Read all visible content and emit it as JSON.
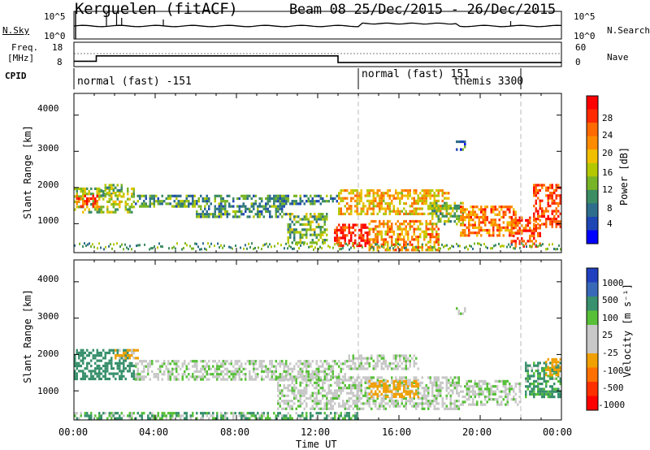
{
  "header": {
    "title": "Kerguelen (fitACF)",
    "beam_range": "Beam 08  25/Dec/2015 - 26/Dec/2015"
  },
  "top_panels": {
    "nsky": {
      "left_label": "N.Sky",
      "right_label": "N.Search",
      "left_ticks": [
        "10^5",
        "10^0"
      ],
      "right_ticks": [
        "10^5",
        "10^0"
      ]
    },
    "freq": {
      "left_label_line1": "Freq.",
      "left_label_line2": "[MHz]",
      "right_label": "Nave",
      "left_ticks": [
        "18",
        "8"
      ],
      "right_ticks": [
        "60",
        "0"
      ]
    },
    "cpid": {
      "label": "CPID",
      "modes": [
        {
          "text": "normal (fast) -151",
          "start_hour": 0,
          "end_hour": 14
        },
        {
          "text": "normal (fast) 151",
          "start_hour": 14,
          "end_hour": 22
        },
        {
          "text": "themis 3300",
          "start_hour": 19.5,
          "end_hour": 22
        }
      ],
      "boundaries_hours": [
        14,
        22
      ]
    }
  },
  "power_panel": {
    "ylabel": "Slant Range [km]",
    "yticks": [
      "4000",
      "3000",
      "2000",
      "1000"
    ],
    "colorbar_label": "Power [dB]",
    "colorbar_ticks": [
      "28",
      "24",
      "20",
      "16",
      "12",
      "8",
      "4"
    ],
    "colors": [
      "#ff0000",
      "#ff2a00",
      "#ff6a00",
      "#ff8c00",
      "#f0c000",
      "#b4c800",
      "#78b428",
      "#3c8c64",
      "#2e6e8c",
      "#1e46b4",
      "#0000ff"
    ]
  },
  "velocity_panel": {
    "ylabel": "Slant Range [km]",
    "yticks": [
      "4000",
      "3000",
      "2000",
      "1000"
    ],
    "colorbar_label": "Velocity [m s⁻¹]",
    "colorbar_ticks": [
      "1000",
      "500",
      "100",
      "25",
      "-25",
      "-100",
      "-500",
      "-1000"
    ],
    "colors": [
      "#2040c0",
      "#3868b8",
      "#38906c",
      "#58c038",
      "#c8c8c8",
      "#c8c8c8",
      "#f0a000",
      "#ff7000",
      "#ff3000",
      "#ff0000"
    ]
  },
  "xaxis": {
    "ticks": [
      "00:00",
      "04:00",
      "08:00",
      "12:00",
      "16:00",
      "20:00",
      "00:00"
    ],
    "label": "Time UT"
  },
  "chart_data": {
    "type": "heatmap",
    "title": "Kerguelen (fitACF) Beam 08 25/Dec/2015 - 26/Dec/2015",
    "xlabel": "Time UT",
    "ylabel": "Slant Range [km]",
    "xlim_hours": [
      0,
      24
    ],
    "ylim_km": [
      200,
      4600
    ],
    "freq_mhz_segments": [
      {
        "start_hour": 0,
        "end_hour": 1.1,
        "value": 10.2
      },
      {
        "start_hour": 1.1,
        "end_hour": 13,
        "value": 12.4
      },
      {
        "start_hour": 13,
        "end_hour": 24,
        "value": 9.7
      }
    ],
    "power_db_range": [
      0,
      30
    ],
    "velocity_ms_range": [
      -1000,
      1000
    ],
    "power_blobs": [
      {
        "t0": 0,
        "t1": 3.0,
        "r0": 1300,
        "r1": 2000,
        "db": 14
      },
      {
        "t0": 0.1,
        "t1": 1.3,
        "r0": 1500,
        "r1": 1800,
        "db": 26
      },
      {
        "t0": 1.3,
        "t1": 2.4,
        "r0": 1800,
        "r1": 2100,
        "db": 12
      },
      {
        "t0": 3.0,
        "t1": 6.0,
        "r0": 1450,
        "r1": 1800,
        "db": 10
      },
      {
        "t0": 6.0,
        "t1": 10.5,
        "r0": 1200,
        "r1": 1800,
        "db": 9
      },
      {
        "t0": 10.0,
        "t1": 13.0,
        "r0": 1550,
        "r1": 1800,
        "db": 8
      },
      {
        "t0": 10.5,
        "t1": 12.5,
        "r0": 500,
        "r1": 1300,
        "db": 12
      },
      {
        "t0": 12.8,
        "t1": 14.5,
        "r0": 400,
        "r1": 1000,
        "db": 28
      },
      {
        "t0": 13.0,
        "t1": 18.5,
        "r0": 1250,
        "r1": 1950,
        "db": 19
      },
      {
        "t0": 14.5,
        "t1": 18.0,
        "r0": 300,
        "r1": 1100,
        "db": 21
      },
      {
        "t0": 17.5,
        "t1": 19.2,
        "r0": 1000,
        "r1": 1600,
        "db": 12
      },
      {
        "t0": 19.0,
        "t1": 21.8,
        "r0": 700,
        "r1": 1500,
        "db": 23
      },
      {
        "t0": 21.5,
        "t1": 23.0,
        "r0": 400,
        "r1": 1200,
        "db": 26
      },
      {
        "t0": 22.6,
        "t1": 24.0,
        "r0": 900,
        "r1": 2100,
        "db": 26
      },
      {
        "t0": 18.8,
        "t1": 19.3,
        "r0": 3050,
        "r1": 3300,
        "db": 6
      }
    ],
    "velocity_blobs": [
      {
        "t0": 0,
        "t1": 3.0,
        "r0": 1350,
        "r1": 2150,
        "v": 150
      },
      {
        "t0": 2.0,
        "t1": 3.2,
        "r0": 1900,
        "r1": 2150,
        "v": -120
      },
      {
        "t0": 3.0,
        "t1": 13.5,
        "r0": 1300,
        "r1": 1850,
        "v": 0
      },
      {
        "t0": 10.0,
        "t1": 19.0,
        "r0": 500,
        "r1": 1400,
        "v": 0
      },
      {
        "t0": 14.5,
        "t1": 17.0,
        "r0": 800,
        "r1": 1300,
        "v": -300
      },
      {
        "t0": 13.5,
        "t1": 17.0,
        "r0": 1600,
        "r1": 2000,
        "v": 0
      },
      {
        "t0": 19.0,
        "t1": 22.0,
        "r0": 600,
        "r1": 1300,
        "v": 0
      },
      {
        "t0": 22.2,
        "t1": 24.0,
        "r0": 800,
        "r1": 1800,
        "v": 80
      },
      {
        "t0": 23.2,
        "t1": 24.0,
        "r0": 1400,
        "r1": 1900,
        "v": -200
      },
      {
        "t0": 0,
        "t1": 14.0,
        "r0": 220,
        "r1": 420,
        "v": 60
      },
      {
        "t0": 18.8,
        "t1": 19.3,
        "r0": 3100,
        "r1": 3300,
        "v": 0
      }
    ]
  }
}
